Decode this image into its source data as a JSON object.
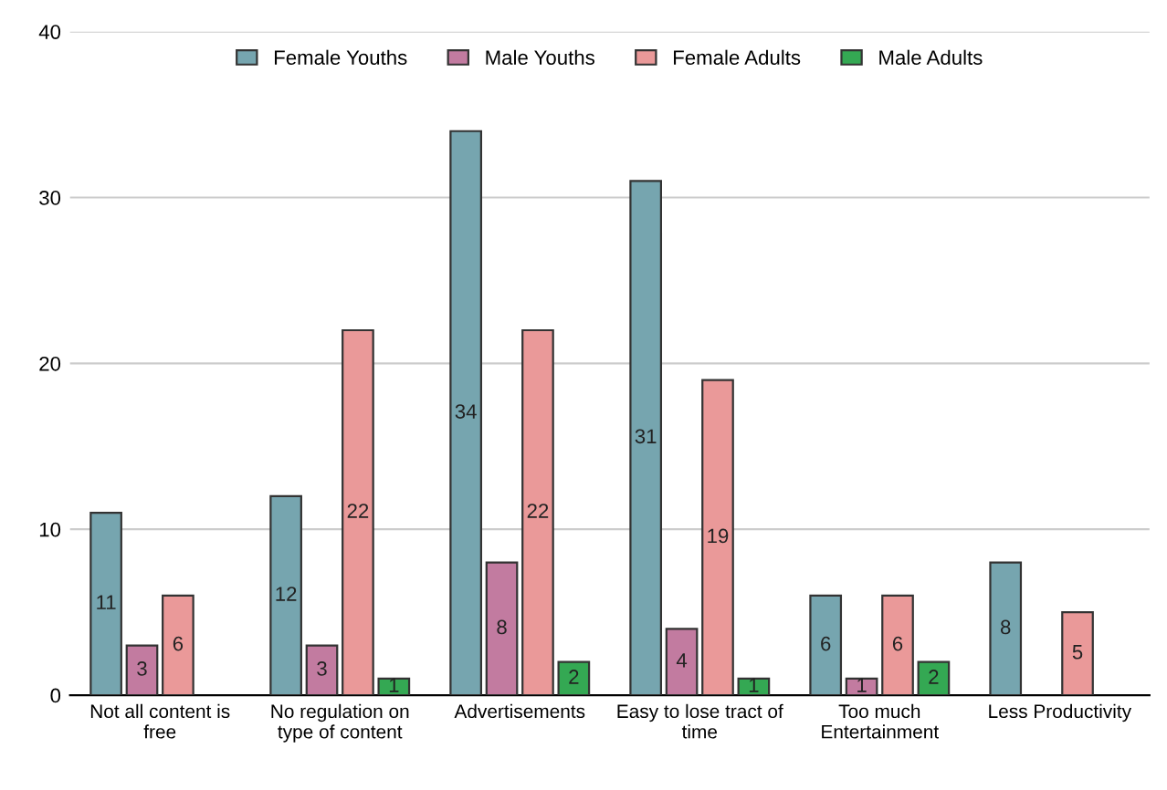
{
  "chart_data": {
    "type": "bar",
    "categories": [
      "Not all content is\nfree",
      "No regulation on\ntype of content",
      "Advertisements",
      "Easy to lose tract of\ntime",
      "Too much\nEntertainment",
      "Less Productivity"
    ],
    "series": [
      {
        "name": "Female Youths",
        "color": "#76a5af",
        "values": [
          11,
          12,
          34,
          31,
          6,
          8
        ]
      },
      {
        "name": "Male Youths",
        "color": "#c27ba0",
        "values": [
          3,
          3,
          8,
          4,
          1,
          null
        ]
      },
      {
        "name": "Female Adults",
        "color": "#ea9999",
        "values": [
          6,
          22,
          22,
          19,
          6,
          5
        ]
      },
      {
        "name": "Male Adults",
        "color": "#34a853",
        "values": [
          null,
          1,
          2,
          1,
          2,
          null
        ]
      }
    ],
    "ylim": [
      0,
      40
    ],
    "yticks": [
      0,
      10,
      20,
      30,
      40
    ],
    "grid": "y",
    "legend": "top",
    "data_labels": true
  }
}
